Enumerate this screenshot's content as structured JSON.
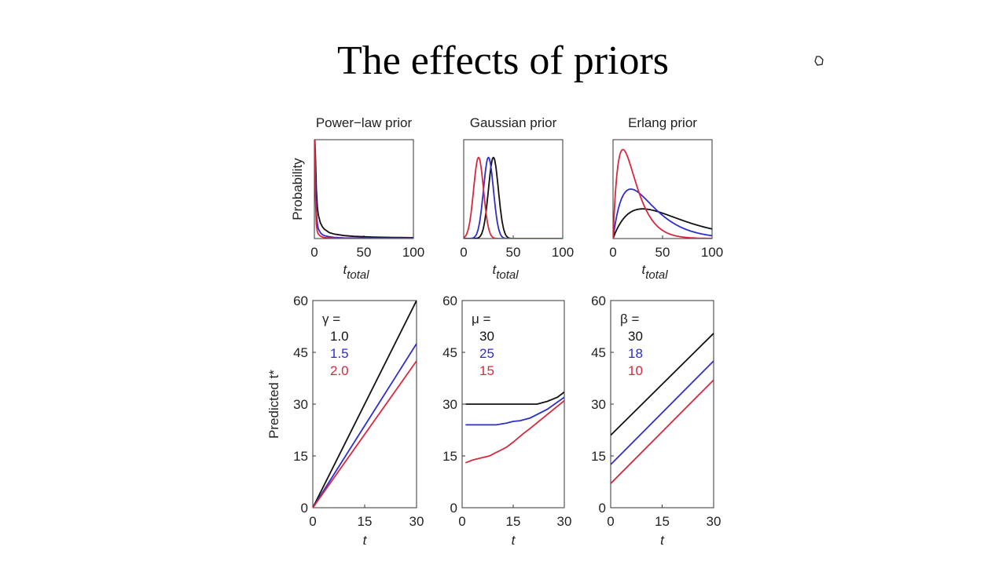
{
  "slide": {
    "title": "The effects of priors"
  },
  "colors": {
    "black": "#111111",
    "blue": "#2e2ecc",
    "red": "#d8283c"
  },
  "icons": {
    "cursor": "pointer-cursor-icon"
  },
  "chart_data": [
    {
      "type": "line",
      "title": "Power−law prior",
      "xlabel": "t",
      "xlabel_sub": "total",
      "ylabel": "Probability",
      "xlim": [
        0,
        100
      ],
      "ylim": [
        0,
        1
      ],
      "xticks": [
        "0",
        "50",
        "100"
      ],
      "series": [
        {
          "name": "black",
          "x": [
            0.5,
            1,
            2,
            3,
            4,
            6,
            8,
            10,
            15,
            20,
            30,
            40,
            50,
            60,
            80,
            100
          ],
          "y": [
            1.0,
            0.85,
            0.5,
            0.32,
            0.24,
            0.16,
            0.12,
            0.095,
            0.06,
            0.045,
            0.03,
            0.022,
            0.018,
            0.015,
            0.011,
            0.009
          ]
        },
        {
          "name": "blue",
          "x": [
            0.5,
            1,
            2,
            3,
            4,
            6,
            8,
            10,
            15,
            20,
            30,
            50,
            100
          ],
          "y": [
            1.0,
            0.6,
            0.26,
            0.15,
            0.1,
            0.06,
            0.04,
            0.03,
            0.018,
            0.012,
            0.007,
            0.004,
            0.002
          ]
        },
        {
          "name": "red",
          "x": [
            0.5,
            1,
            2,
            3,
            4,
            6,
            8,
            10,
            15,
            20,
            30,
            50,
            100
          ],
          "y": [
            1.0,
            0.45,
            0.14,
            0.07,
            0.045,
            0.025,
            0.016,
            0.011,
            0.006,
            0.004,
            0.002,
            0.001,
            0.0
          ]
        }
      ]
    },
    {
      "type": "line",
      "title": "Gaussian prior",
      "xlabel": "t",
      "xlabel_sub": "total",
      "xlim": [
        0,
        100
      ],
      "ylim": [
        0,
        1
      ],
      "xticks": [
        "0",
        "50",
        "100"
      ],
      "series": [
        {
          "name": "black",
          "mu": 30,
          "sigma": 5
        },
        {
          "name": "blue",
          "mu": 25,
          "sigma": 5
        },
        {
          "name": "red",
          "mu": 15,
          "sigma": 5
        }
      ]
    },
    {
      "type": "line",
      "title": "Erlang prior",
      "xlabel": "t",
      "xlabel_sub": "total",
      "xlim": [
        0,
        100
      ],
      "ylim": [
        0,
        1
      ],
      "xticks": [
        "0",
        "50",
        "100"
      ],
      "series": [
        {
          "name": "black",
          "beta": 30,
          "peak": 0.3
        },
        {
          "name": "blue",
          "beta": 18,
          "peak": 0.5
        },
        {
          "name": "red",
          "beta": 10,
          "peak": 0.9
        }
      ]
    },
    {
      "type": "line",
      "xlabel": "t",
      "ylabel": "Predicted t*",
      "xlim": [
        0,
        30
      ],
      "ylim": [
        0,
        60
      ],
      "xticks": [
        "0",
        "15",
        "30"
      ],
      "yticks": [
        "0",
        "15",
        "30",
        "45",
        "60"
      ],
      "legend_title": "γ =",
      "legend": [
        "1.0",
        "1.5",
        "2.0"
      ],
      "series": [
        {
          "name": "1.0",
          "x": [
            0,
            30
          ],
          "y": [
            0,
            60
          ]
        },
        {
          "name": "1.5",
          "x": [
            0,
            30
          ],
          "y": [
            0,
            47.5
          ]
        },
        {
          "name": "2.0",
          "x": [
            0,
            30
          ],
          "y": [
            0,
            42.5
          ]
        }
      ]
    },
    {
      "type": "line",
      "xlabel": "t",
      "xlim": [
        0,
        30
      ],
      "ylim": [
        0,
        60
      ],
      "xticks": [
        "0",
        "15",
        "30"
      ],
      "yticks": [
        "0",
        "15",
        "30",
        "45",
        "60"
      ],
      "legend_title": "μ =",
      "legend": [
        "30",
        "25",
        "15"
      ],
      "series": [
        {
          "name": "30",
          "x": [
            1,
            5,
            10,
            15,
            20,
            22,
            25,
            28,
            30
          ],
          "y": [
            30,
            30,
            30,
            30,
            30,
            30,
            30.8,
            32,
            33.5
          ]
        },
        {
          "name": "25",
          "x": [
            1,
            5,
            10,
            13,
            15,
            17,
            20,
            25,
            30
          ],
          "y": [
            24,
            24,
            24,
            24.5,
            25,
            25.2,
            26,
            28.5,
            32
          ]
        },
        {
          "name": "15",
          "x": [
            1,
            3,
            5,
            8,
            10,
            13,
            15,
            18,
            20,
            25,
            30
          ],
          "y": [
            13,
            13.8,
            14.3,
            15,
            16,
            17.5,
            19,
            21.5,
            23,
            27,
            31
          ]
        }
      ]
    },
    {
      "type": "line",
      "xlabel": "t",
      "xlim": [
        0,
        30
      ],
      "ylim": [
        0,
        60
      ],
      "xticks": [
        "0",
        "15",
        "30"
      ],
      "yticks": [
        "0",
        "15",
        "30",
        "45",
        "60"
      ],
      "legend_title": "β =",
      "legend": [
        "30",
        "18",
        "10"
      ],
      "series": [
        {
          "name": "30",
          "x": [
            0,
            30
          ],
          "y": [
            21,
            50.5
          ]
        },
        {
          "name": "18",
          "x": [
            0,
            30
          ],
          "y": [
            12.5,
            42.5
          ]
        },
        {
          "name": "10",
          "x": [
            0,
            30
          ],
          "y": [
            7,
            37
          ]
        }
      ]
    }
  ]
}
